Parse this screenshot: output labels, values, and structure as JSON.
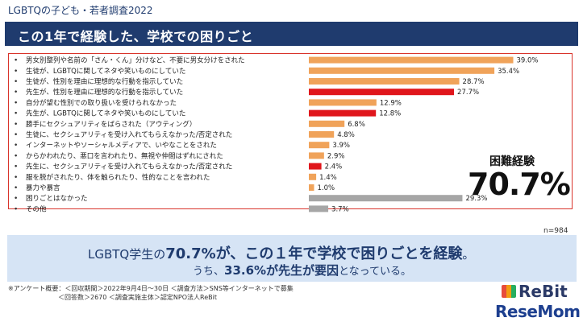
{
  "header": {
    "survey_label": "LGBTQの子ども・若者調査2022",
    "title": "この1年で経験した、学校での困りごと"
  },
  "callout": {
    "label": "困難経験",
    "value": "70.7%"
  },
  "sample": "n=984",
  "summary": {
    "line1_prefix": "LGBTQ学生の",
    "line1_bold": "70.7%が、この１年で学校で困りごとを経験",
    "line1_suffix": "。",
    "line2_prefix": "うち、",
    "line2_bold": "33.6%が先生が要因",
    "line2_suffix": "となっている。"
  },
  "footnote": {
    "line1": "※アンケート概要：＜回収期間＞2022年9月4日〜30日 ＜調査方法＞SNS等インターネットで募集",
    "line2": "＜回答数＞2670 ＜調査実施主体＞認定NPO法人ReBit"
  },
  "logos": {
    "rebit": "ReBit",
    "resemom": "ReseMom"
  },
  "colors": {
    "orange": "#f0a35a",
    "red": "#e0161c",
    "gray": "#a6a6a6",
    "navy": "#1f3b6e",
    "frame": "#d9342b"
  },
  "chart_data": {
    "type": "bar",
    "orientation": "horizontal",
    "xlim": [
      0,
      40
    ],
    "categories": [
      "男女別整列や名前の「さん・くん」分けなど、不要に男女分けをされた",
      "生徒が、LGBTQに関してネタや笑いものにしていた",
      "生徒が、性別を理由に理想的な行動を指示していた",
      "先生が、性別を理由に理想的な行動を指示していた",
      "自分が望む性別での取り扱いを受けられなかった",
      "先生が、LGBTQに関してネタや笑いものにしていた",
      "勝手にセクシュアリティをばらされた（アウティング）",
      "生徒に、セクシュアリティを受け入れてもらえなかった/否定された",
      "インターネットやソーシャルメディアで、いやなことをされた",
      "からかわれたり、悪口を言われたり、無視や仲間はずれにされた",
      "先生に、セクシュアリティを受け入れてもらえなかった/否定された",
      "服を脱がされたり、体を触られたり、性的なことを言われた",
      "暴力や暴言",
      "困りごとはなかった",
      "その他"
    ],
    "values": [
      39.0,
      35.4,
      28.7,
      27.7,
      12.9,
      12.8,
      6.8,
      4.8,
      3.9,
      2.9,
      2.4,
      1.4,
      1.0,
      29.3,
      3.7
    ],
    "value_labels": [
      "39.0%",
      "35.4%",
      "28.7%",
      "27.7%",
      "12.9%",
      "12.8%",
      "6.8%",
      "4.8%",
      "3.9%",
      "2.9%",
      "2.4%",
      "1.4%",
      "1.0%",
      "29.3%",
      "3.7%"
    ],
    "bar_groups": [
      "student",
      "student",
      "student",
      "teacher",
      "student",
      "teacher",
      "student",
      "student",
      "student",
      "student",
      "teacher",
      "student",
      "student",
      "none",
      "other"
    ],
    "group_colors": {
      "student": "#f0a35a",
      "teacher": "#e0161c",
      "none": "#a6a6a6",
      "other": "#a6a6a6"
    }
  }
}
